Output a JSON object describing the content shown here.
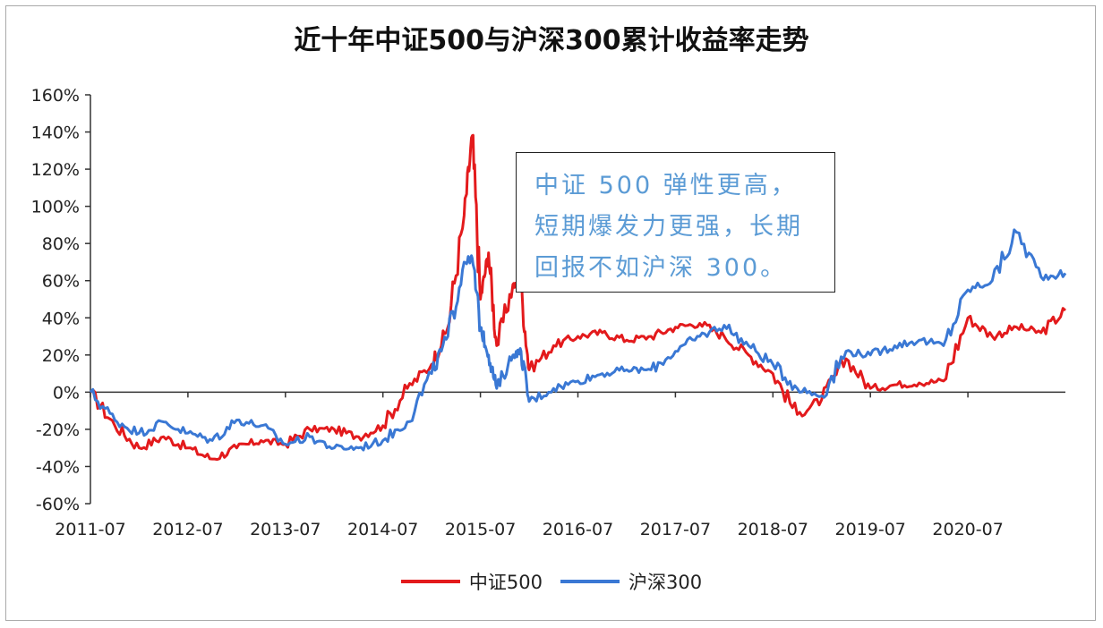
{
  "chart_data": {
    "type": "line",
    "title": "近十年中证500与沪深300累计收益率走势",
    "xlabel": "",
    "ylabel": "",
    "ylim": [
      -0.6,
      1.6
    ],
    "y_ticks": [
      -0.6,
      -0.4,
      -0.2,
      0,
      0.2,
      0.4,
      0.6,
      0.8,
      1.0,
      1.2,
      1.4,
      1.6
    ],
    "y_tick_labels": [
      "-60%",
      "-40%",
      "-20%",
      "0%",
      "20%",
      "40%",
      "60%",
      "80%",
      "100%",
      "120%",
      "140%",
      "160%"
    ],
    "x_range": [
      "2011-07",
      "2021-07"
    ],
    "x_tick_labels": [
      "2011-07",
      "2012-07",
      "2013-07",
      "2014-07",
      "2015-07",
      "2016-07",
      "2017-07",
      "2018-07",
      "2019-07",
      "2020-07"
    ],
    "grid": false,
    "legend_position": "bottom",
    "annotation": "中证 500 弹性更高，短期爆发力更强，长期回报不如沪深 300。",
    "x": [
      "2011-07",
      "2011-10",
      "2012-01",
      "2012-04",
      "2012-07",
      "2012-10",
      "2013-01",
      "2013-04",
      "2013-07",
      "2013-10",
      "2014-01",
      "2014-04",
      "2014-07",
      "2014-10",
      "2015-01",
      "2015-03",
      "2015-05",
      "2015-06",
      "2015-07",
      "2015-08",
      "2015-09",
      "2015-11",
      "2015-12",
      "2016-01",
      "2016-04",
      "2016-07",
      "2016-10",
      "2017-01",
      "2017-04",
      "2017-07",
      "2017-10",
      "2018-01",
      "2018-04",
      "2018-07",
      "2018-10",
      "2019-01",
      "2019-04",
      "2019-07",
      "2019-10",
      "2020-01",
      "2020-04",
      "2020-07",
      "2020-10",
      "2021-01",
      "2021-04",
      "2021-07"
    ],
    "series": [
      {
        "name": "中证500",
        "color": "#e31a1c",
        "values": [
          0.0,
          -0.18,
          -0.3,
          -0.24,
          -0.3,
          -0.36,
          -0.3,
          -0.26,
          -0.28,
          -0.2,
          -0.2,
          -0.24,
          -0.18,
          0.02,
          0.15,
          0.35,
          0.95,
          1.38,
          0.5,
          0.75,
          0.25,
          0.58,
          0.55,
          0.12,
          0.25,
          0.3,
          0.32,
          0.28,
          0.3,
          0.35,
          0.37,
          0.3,
          0.2,
          0.1,
          -0.12,
          -0.04,
          0.18,
          0.02,
          0.04,
          0.05,
          0.06,
          0.4,
          0.3,
          0.35,
          0.32,
          0.44
        ]
      },
      {
        "name": "沪深300",
        "color": "#3a78d4",
        "values": [
          0.0,
          -0.15,
          -0.22,
          -0.16,
          -0.22,
          -0.26,
          -0.15,
          -0.18,
          -0.28,
          -0.24,
          -0.3,
          -0.3,
          -0.26,
          -0.16,
          0.1,
          0.3,
          0.7,
          0.72,
          0.35,
          0.2,
          0.02,
          0.2,
          0.22,
          -0.05,
          0.02,
          0.06,
          0.1,
          0.12,
          0.12,
          0.22,
          0.3,
          0.36,
          0.25,
          0.15,
          0.02,
          -0.02,
          0.22,
          0.2,
          0.25,
          0.28,
          0.25,
          0.55,
          0.6,
          0.86,
          0.62,
          0.64
        ]
      }
    ]
  }
}
